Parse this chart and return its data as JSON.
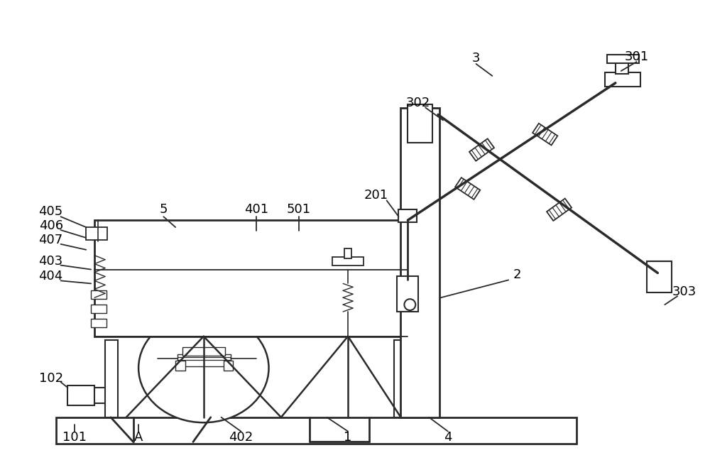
{
  "bg_color": "white",
  "line_color": "#2a2a2a",
  "lw": 1.3,
  "fig_width": 10.0,
  "fig_height": 6.55,
  "dpi": 100
}
